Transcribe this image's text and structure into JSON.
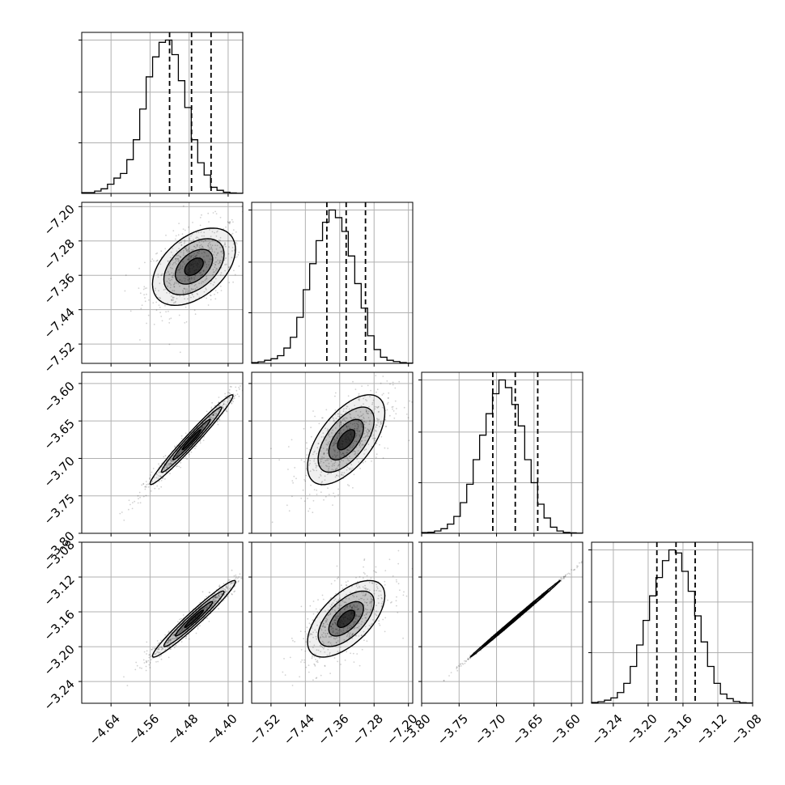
{
  "chart_data": {
    "type": "corner",
    "parameters": 4,
    "grid": true,
    "colors": {
      "line": "#000000",
      "grid": "#b0b0b0",
      "density": "#000000"
    },
    "quantile_lines": "dashed",
    "axes": [
      {
        "range": [
          -4.7,
          -4.37
        ],
        "ticks": [
          -4.64,
          -4.56,
          -4.48,
          -4.4
        ],
        "tick_labels": [
          "−4.64",
          "−4.56",
          "−4.48",
          "−4.40"
        ],
        "quantiles": [
          -4.52,
          -4.475,
          -4.435
        ]
      },
      {
        "range": [
          -7.565,
          -7.19
        ],
        "ticks": [
          -7.52,
          -7.44,
          -7.36,
          -7.28,
          -7.2
        ],
        "tick_labels": [
          "−7.52",
          "−7.44",
          "−7.36",
          "−7.28",
          "−7.20"
        ],
        "quantiles": [
          -7.39,
          -7.345,
          -7.3
        ]
      },
      {
        "range": [
          -3.8,
          -3.585
        ],
        "ticks": [
          -3.8,
          -3.75,
          -3.7,
          -3.65,
          -3.6
        ],
        "tick_labels": [
          "−3.80",
          "−3.75",
          "−3.70",
          "−3.65",
          "−3.60"
        ],
        "quantiles": [
          -3.705,
          -3.675,
          -3.645
        ]
      },
      {
        "range": [
          -3.265,
          -3.08
        ],
        "ticks": [
          -3.24,
          -3.2,
          -3.16,
          -3.12,
          -3.08
        ],
        "tick_labels": [
          "−3.24",
          "−3.20",
          "−3.16",
          "−3.12",
          "−3.08"
        ],
        "quantiles": [
          -3.19,
          -3.168,
          -3.146
        ]
      }
    ],
    "marginals": [
      {
        "param": 0,
        "hist": [
          0.005,
          0.005,
          0.015,
          0.03,
          0.06,
          0.1,
          0.13,
          0.22,
          0.35,
          0.55,
          0.76,
          0.89,
          0.985,
          1.0,
          0.905,
          0.735,
          0.56,
          0.35,
          0.2,
          0.12,
          0.04,
          0.02,
          0.008,
          0.003,
          0.001
        ]
      },
      {
        "param": 1,
        "hist": [
          0.005,
          0.01,
          0.02,
          0.03,
          0.05,
          0.1,
          0.17,
          0.3,
          0.48,
          0.65,
          0.8,
          0.92,
          1.0,
          0.95,
          0.86,
          0.7,
          0.52,
          0.36,
          0.18,
          0.09,
          0.04,
          0.02,
          0.012,
          0.005,
          0.002
        ]
      },
      {
        "param": 2,
        "hist": [
          0.005,
          0.007,
          0.015,
          0.03,
          0.06,
          0.11,
          0.2,
          0.32,
          0.48,
          0.64,
          0.78,
          0.91,
          1.0,
          0.95,
          0.84,
          0.7,
          0.48,
          0.33,
          0.19,
          0.1,
          0.04,
          0.015,
          0.006,
          0.003,
          0.001
        ]
      },
      {
        "param": 3,
        "hist": [
          0.005,
          0.01,
          0.02,
          0.035,
          0.07,
          0.13,
          0.24,
          0.38,
          0.54,
          0.7,
          0.82,
          0.93,
          1.0,
          0.98,
          0.86,
          0.73,
          0.57,
          0.4,
          0.24,
          0.13,
          0.06,
          0.03,
          0.012,
          0.004,
          0.002
        ]
      }
    ],
    "joints": [
      {
        "x": 0,
        "y": 1,
        "peak": [
          -4.47,
          -7.34
        ],
        "correlation": 0.45
      },
      {
        "x": 0,
        "y": 2,
        "peak": [
          -4.475,
          -3.675
        ],
        "correlation": 0.98
      },
      {
        "x": 1,
        "y": 2,
        "peak": [
          -7.345,
          -3.675
        ],
        "correlation": 0.6
      },
      {
        "x": 0,
        "y": 3,
        "peak": [
          -4.47,
          -3.168
        ],
        "correlation": 0.97
      },
      {
        "x": 1,
        "y": 3,
        "peak": [
          -7.345,
          -3.168
        ],
        "correlation": 0.6
      },
      {
        "x": 2,
        "y": 3,
        "peak": [
          -3.675,
          -3.168
        ],
        "correlation": 0.999
      }
    ]
  }
}
